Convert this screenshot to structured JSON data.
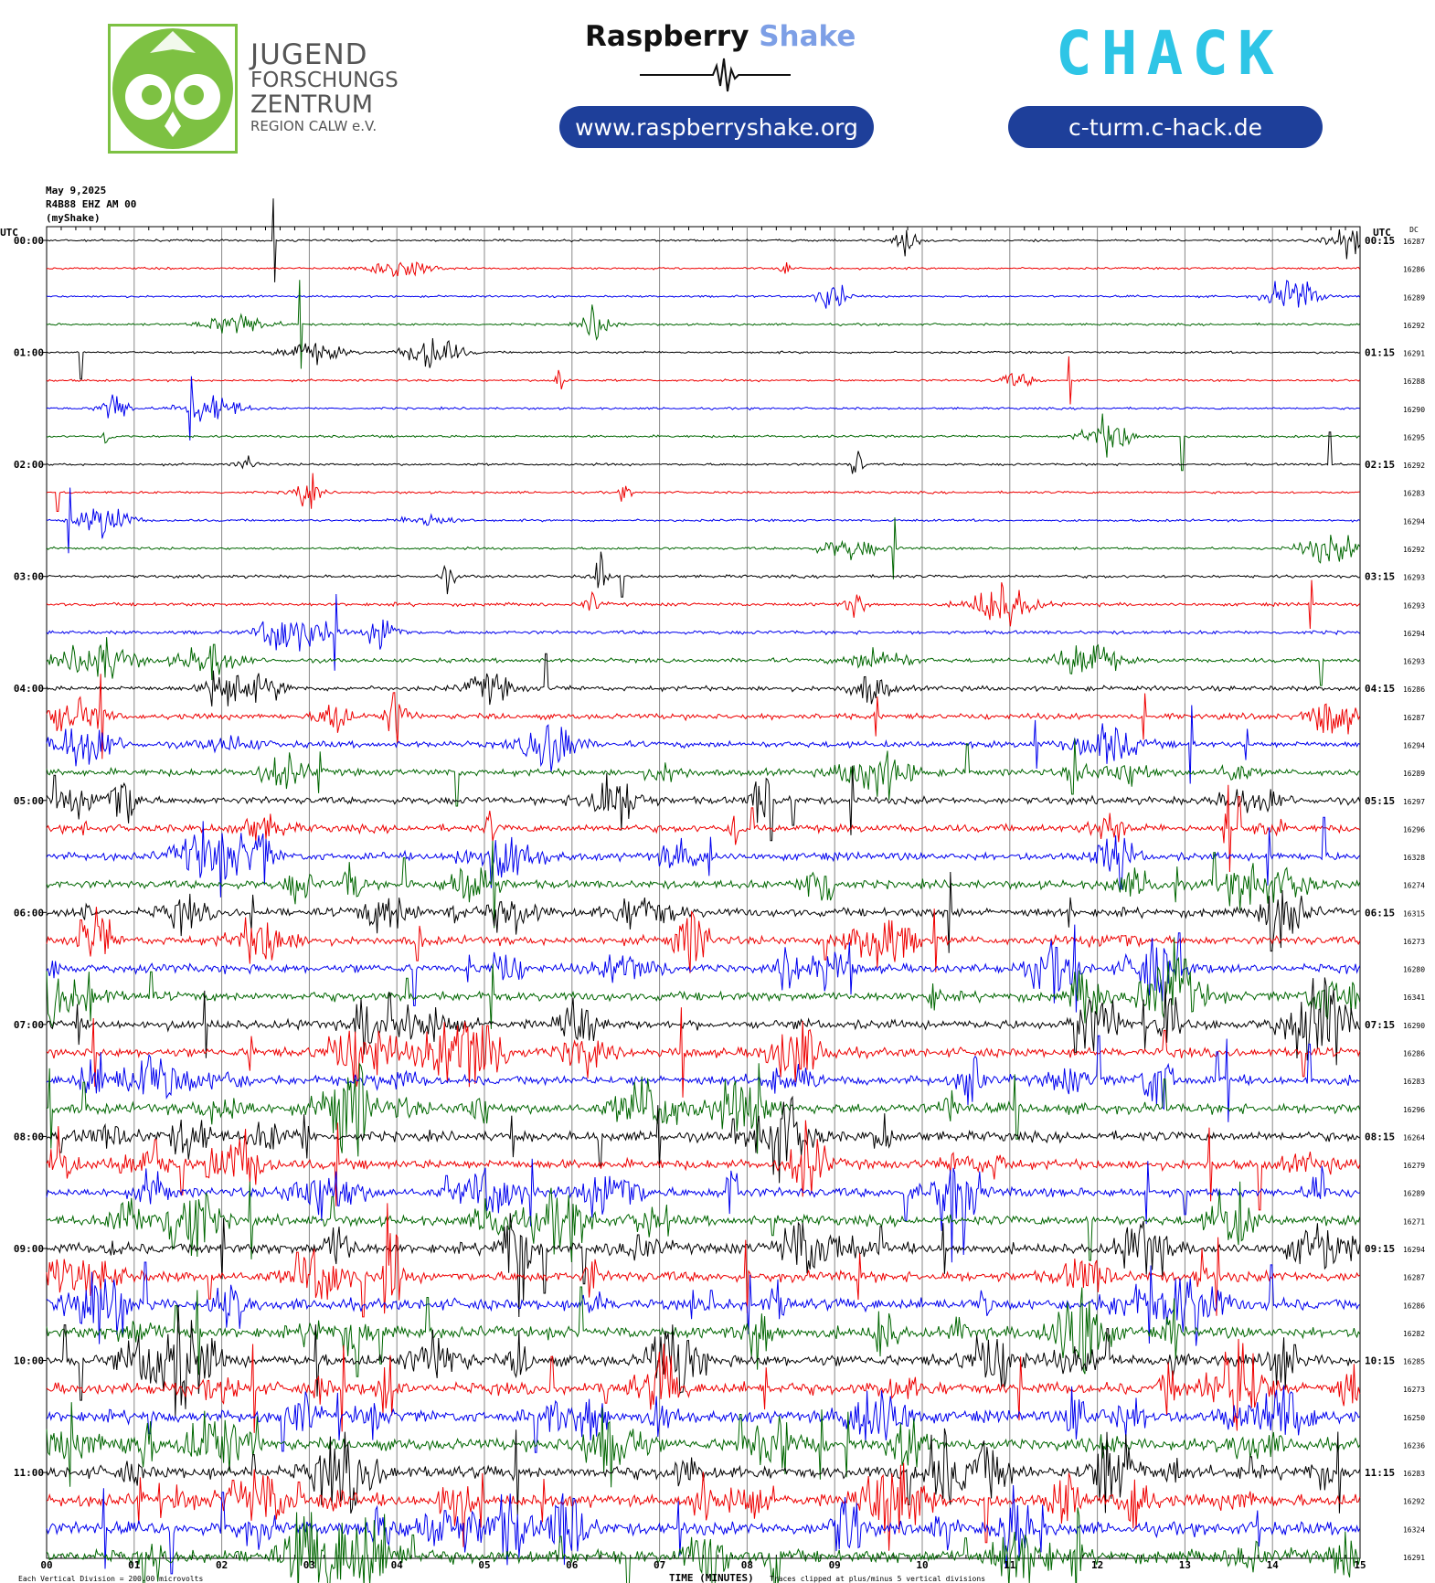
{
  "header": {
    "logo_left": {
      "line1": "JUGEND",
      "line2": "FORSCHUNGS",
      "line3": "ZENTRUM",
      "line4": "REGION CALW e.V."
    },
    "logo_center": {
      "word1": "Raspberry",
      "word2": "Shake",
      "url": "www.raspberryshake.org"
    },
    "logo_right": {
      "brand": "CHACK",
      "url": "c-turm.c-hack.de"
    },
    "colors": {
      "owl_green": "#7dc142",
      "pill_blue": "#1e3f9a",
      "shake_blue": "#7d9fe6",
      "chack_green": "#7dc142",
      "chack_cyan": "#2ec5e6"
    }
  },
  "meta": {
    "date": "May 9,2025",
    "station": "R4B88 EHZ AM 00",
    "source": "(myShake)"
  },
  "chart_data": {
    "type": "line",
    "title": "",
    "xlabel": "TIME (MINUTES)",
    "left_axis_title": "UTC",
    "right_axis_title": "UTC",
    "dc_title": "DC",
    "x_ticks": [
      "00",
      "01",
      "02",
      "03",
      "04",
      "05",
      "06",
      "07",
      "08",
      "09",
      "10",
      "11",
      "12",
      "13",
      "14",
      "15"
    ],
    "xlim": [
      0,
      15
    ],
    "trace_colors": [
      "#000000",
      "#ee0000",
      "#0000ee",
      "#006600"
    ],
    "left_labels": [
      "00:00",
      "01:00",
      "02:00",
      "03:00",
      "04:00",
      "05:00",
      "06:00",
      "07:00",
      "08:00",
      "09:00",
      "10:00",
      "11:00"
    ],
    "right_labels": [
      "00:15",
      "01:15",
      "02:15",
      "03:15",
      "04:15",
      "05:15",
      "06:15",
      "07:15",
      "08:15",
      "09:15",
      "10:15",
      "11:15"
    ],
    "dc_values": [
      16287,
      16286,
      16289,
      16292,
      16291,
      16288,
      16290,
      16295,
      16292,
      16283,
      16294,
      16292,
      16293,
      16293,
      16294,
      16293,
      16286,
      16287,
      16294,
      16289,
      16297,
      16296,
      16328,
      16274,
      16315,
      16273,
      16280,
      16341,
      16290,
      16286,
      16283,
      16296,
      16264,
      16279,
      16289,
      16271,
      16294,
      16287,
      16286,
      16282,
      16285,
      16273,
      16250,
      16236,
      16283,
      16292,
      16324,
      16291
    ],
    "activity": [
      0.05,
      0.04,
      0.04,
      0.05,
      0.05,
      0.05,
      0.05,
      0.06,
      0.06,
      0.06,
      0.06,
      0.07,
      0.1,
      0.12,
      0.14,
      0.18,
      0.22,
      0.26,
      0.3,
      0.34,
      0.36,
      0.38,
      0.4,
      0.42,
      0.44,
      0.44,
      0.45,
      0.47,
      0.48,
      0.47,
      0.48,
      0.55,
      0.52,
      0.5,
      0.5,
      0.52,
      0.55,
      0.56,
      0.6,
      0.62,
      0.62,
      0.62,
      0.64,
      0.64,
      0.66,
      0.66,
      0.7,
      0.72
    ],
    "footer_left": "Each Vertical Division =  200.00 microvolts",
    "footer_right": "Traces clipped at plus/minus 5 vertical divisions"
  }
}
